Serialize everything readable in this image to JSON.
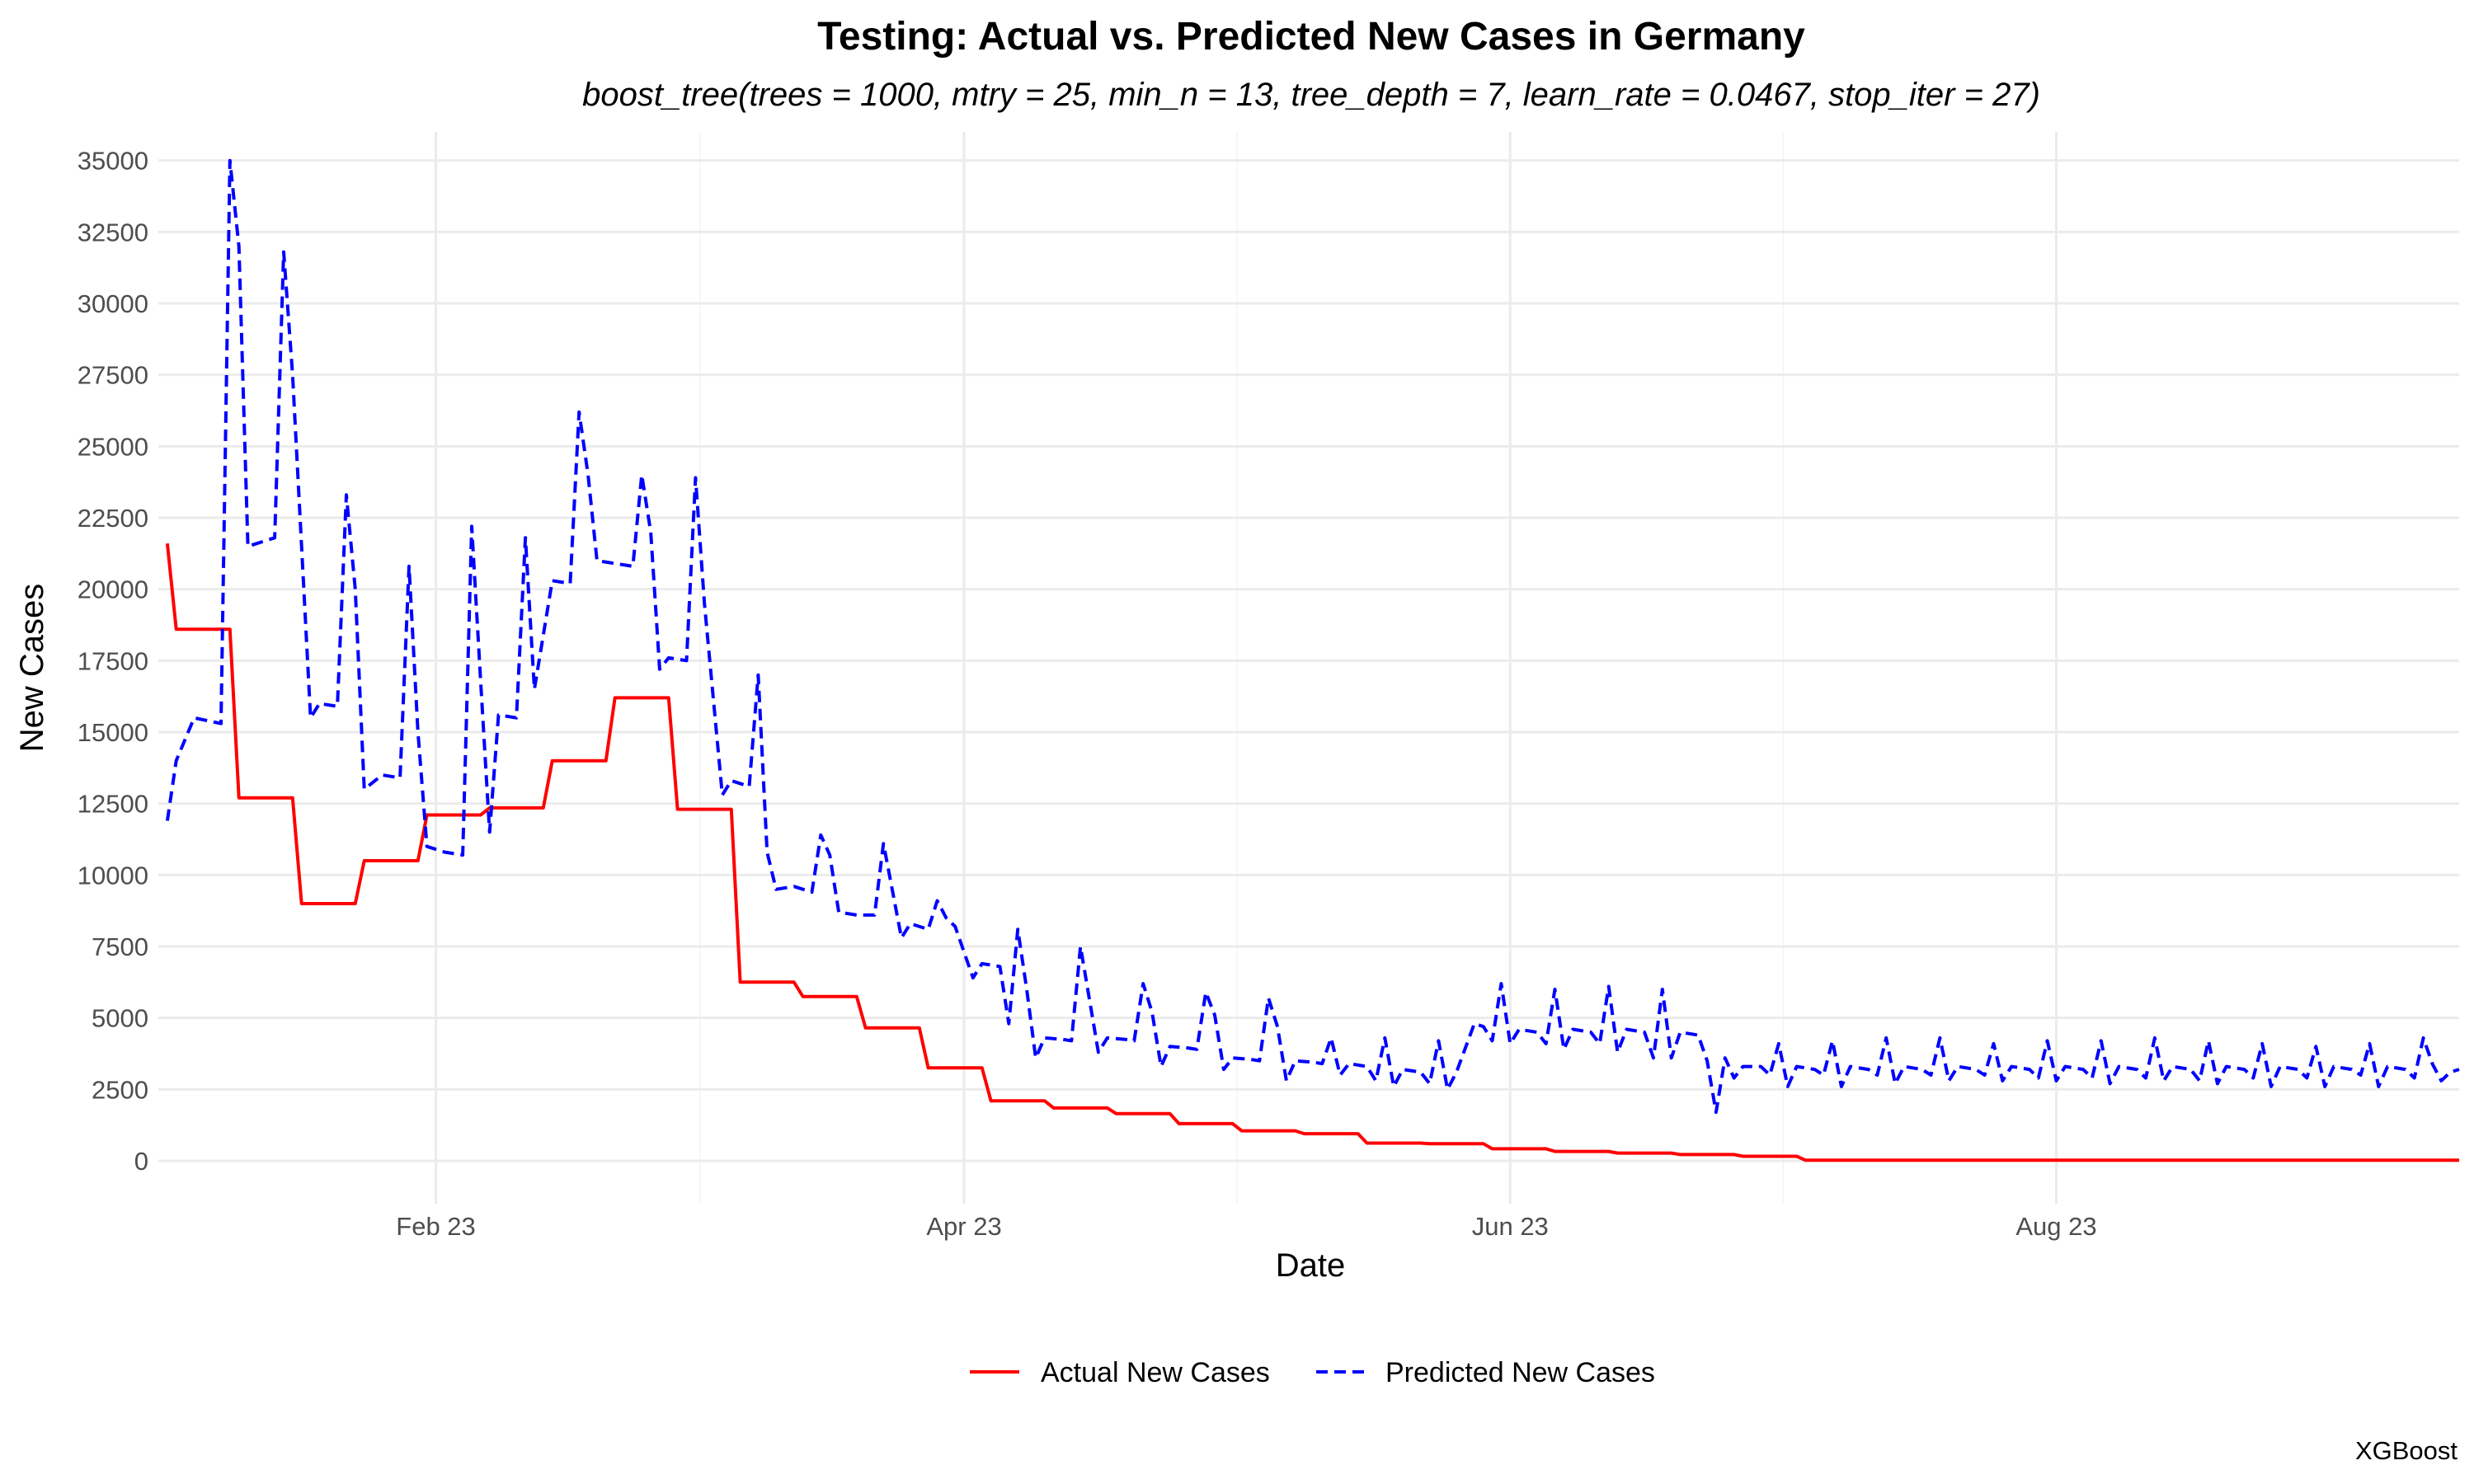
{
  "chart_data": {
    "type": "line",
    "title": "Testing: Actual vs. Predicted New Cases in Germany",
    "subtitle": "boost_tree(trees = 1000, mtry = 25, min_n = 13, tree_depth = 7, learn_rate = 0.0467, stop_iter = 27)",
    "caption": "XGBoost",
    "xlabel": "Date",
    "ylabel": "New Cases",
    "xlim": [
      "2023-01-13",
      "2023-09-27"
    ],
    "ylim": [
      -1500,
      36000
    ],
    "x_ticks": [
      {
        "date": "2023-02-01",
        "label": "Feb 23"
      },
      {
        "date": "2023-04-01",
        "label": "Apr 23"
      },
      {
        "date": "2023-06-01",
        "label": "Jun 23"
      },
      {
        "date": "2023-08-01",
        "label": "Aug 23"
      }
    ],
    "y_ticks": [
      0,
      2500,
      5000,
      7500,
      10000,
      12500,
      15000,
      17500,
      20000,
      22500,
      25000,
      27500,
      30000,
      32500,
      35000
    ],
    "y_tick_labels": [
      "0",
      "2500",
      "5000",
      "7500",
      "10000",
      "12500",
      "15000",
      "17500",
      "20000",
      "22500",
      "25000",
      "27500",
      "30000",
      "32500",
      "35000"
    ],
    "grid": true,
    "legend": {
      "position": "bottom",
      "entries": [
        "Actual New Cases",
        "Predicted New Cases"
      ]
    },
    "series": [
      {
        "name": "Actual New Cases",
        "color": "#ff0000",
        "dash": "solid",
        "points": [
          [
            "2023-01-02",
            21600
          ],
          [
            "2023-01-03",
            18600
          ],
          [
            "2023-01-09",
            18600
          ],
          [
            "2023-01-10",
            12700
          ],
          [
            "2023-01-16",
            12700
          ],
          [
            "2023-01-17",
            9000
          ],
          [
            "2023-01-23",
            9000
          ],
          [
            "2023-01-24",
            10500
          ],
          [
            "2023-01-30",
            10500
          ],
          [
            "2023-01-31",
            12100
          ],
          [
            "2023-02-06",
            12100
          ],
          [
            "2023-02-07",
            12350
          ],
          [
            "2023-02-13",
            12350
          ],
          [
            "2023-02-14",
            14000
          ],
          [
            "2023-02-20",
            14000
          ],
          [
            "2023-02-21",
            16200
          ],
          [
            "2023-02-27",
            16200
          ],
          [
            "2023-02-28",
            12300
          ],
          [
            "2023-03-06",
            12300
          ],
          [
            "2023-03-07",
            6250
          ],
          [
            "2023-03-13",
            6250
          ],
          [
            "2023-03-14",
            5750
          ],
          [
            "2023-03-20",
            5750
          ],
          [
            "2023-03-21",
            4650
          ],
          [
            "2023-03-27",
            4650
          ],
          [
            "2023-03-28",
            3250
          ],
          [
            "2023-04-03",
            3250
          ],
          [
            "2023-04-04",
            2100
          ],
          [
            "2023-04-10",
            2100
          ],
          [
            "2023-04-11",
            1850
          ],
          [
            "2023-04-17",
            1850
          ],
          [
            "2023-04-18",
            1650
          ],
          [
            "2023-04-24",
            1650
          ],
          [
            "2023-04-25",
            1300
          ],
          [
            "2023-05-01",
            1300
          ],
          [
            "2023-05-02",
            1050
          ],
          [
            "2023-05-08",
            1050
          ],
          [
            "2023-05-09",
            950
          ],
          [
            "2023-05-15",
            950
          ],
          [
            "2023-05-16",
            620
          ],
          [
            "2023-05-22",
            620
          ],
          [
            "2023-05-23",
            600
          ],
          [
            "2023-05-29",
            600
          ],
          [
            "2023-05-30",
            420
          ],
          [
            "2023-06-05",
            420
          ],
          [
            "2023-06-06",
            330
          ],
          [
            "2023-06-12",
            330
          ],
          [
            "2023-06-13",
            270
          ],
          [
            "2023-06-19",
            270
          ],
          [
            "2023-06-20",
            220
          ],
          [
            "2023-06-26",
            220
          ],
          [
            "2023-06-27",
            160
          ],
          [
            "2023-07-03",
            160
          ],
          [
            "2023-07-04",
            20
          ],
          [
            "2023-09-15",
            20
          ]
        ]
      },
      {
        "name": "Predicted New Cases",
        "color": "#0000ff",
        "dash": "dashed",
        "points": [
          [
            "2023-01-02",
            11900
          ],
          [
            "2023-01-03",
            14000
          ],
          [
            "2023-01-05",
            15500
          ],
          [
            "2023-01-08",
            15300
          ],
          [
            "2023-01-09",
            35000
          ],
          [
            "2023-01-10",
            32000
          ],
          [
            "2023-01-11",
            21500
          ],
          [
            "2023-01-14",
            21800
          ],
          [
            "2023-01-15",
            31800
          ],
          [
            "2023-01-16",
            27500
          ],
          [
            "2023-01-17",
            21500
          ],
          [
            "2023-01-18",
            15500
          ],
          [
            "2023-01-19",
            16000
          ],
          [
            "2023-01-21",
            15900
          ],
          [
            "2023-01-22",
            23300
          ],
          [
            "2023-01-23",
            20000
          ],
          [
            "2023-01-24",
            13000
          ],
          [
            "2023-01-26",
            13500
          ],
          [
            "2023-01-28",
            13400
          ],
          [
            "2023-01-29",
            20800
          ],
          [
            "2023-01-30",
            15000
          ],
          [
            "2023-01-31",
            11000
          ],
          [
            "2023-02-02",
            10800
          ],
          [
            "2023-02-04",
            10700
          ],
          [
            "2023-02-05",
            22200
          ],
          [
            "2023-02-06",
            16800
          ],
          [
            "2023-02-07",
            11500
          ],
          [
            "2023-02-08",
            15600
          ],
          [
            "2023-02-10",
            15500
          ],
          [
            "2023-02-11",
            21800
          ],
          [
            "2023-02-12",
            16500
          ],
          [
            "2023-02-14",
            20300
          ],
          [
            "2023-02-16",
            20200
          ],
          [
            "2023-02-17",
            26200
          ],
          [
            "2023-02-18",
            24000
          ],
          [
            "2023-02-19",
            21000
          ],
          [
            "2023-02-23",
            20800
          ],
          [
            "2023-02-24",
            24000
          ],
          [
            "2023-02-25",
            22000
          ],
          [
            "2023-02-26",
            17200
          ],
          [
            "2023-02-27",
            17600
          ],
          [
            "2023-03-01",
            17500
          ],
          [
            "2023-03-02",
            23900
          ],
          [
            "2023-03-03",
            19500
          ],
          [
            "2023-03-05",
            12800
          ],
          [
            "2023-03-06",
            13300
          ],
          [
            "2023-03-08",
            13100
          ],
          [
            "2023-03-09",
            17000
          ],
          [
            "2023-03-10",
            10800
          ],
          [
            "2023-03-11",
            9500
          ],
          [
            "2023-03-13",
            9600
          ],
          [
            "2023-03-15",
            9400
          ],
          [
            "2023-03-16",
            11400
          ],
          [
            "2023-03-17",
            10700
          ],
          [
            "2023-03-18",
            8700
          ],
          [
            "2023-03-20",
            8600
          ],
          [
            "2023-03-22",
            8600
          ],
          [
            "2023-03-23",
            11100
          ],
          [
            "2023-03-25",
            7800
          ],
          [
            "2023-03-26",
            8300
          ],
          [
            "2023-03-28",
            8100
          ],
          [
            "2023-03-29",
            9100
          ],
          [
            "2023-03-30",
            8500
          ],
          [
            "2023-03-31",
            8200
          ],
          [
            "2023-04-02",
            6400
          ],
          [
            "2023-04-03",
            6900
          ],
          [
            "2023-04-05",
            6800
          ],
          [
            "2023-04-06",
            4800
          ],
          [
            "2023-04-07",
            8100
          ],
          [
            "2023-04-08",
            6000
          ],
          [
            "2023-04-09",
            3600
          ],
          [
            "2023-04-10",
            4300
          ],
          [
            "2023-04-12",
            4250
          ],
          [
            "2023-04-13",
            4200
          ],
          [
            "2023-04-14",
            7500
          ],
          [
            "2023-04-16",
            3800
          ],
          [
            "2023-04-17",
            4300
          ],
          [
            "2023-04-19",
            4250
          ],
          [
            "2023-04-20",
            4200
          ],
          [
            "2023-04-21",
            6200
          ],
          [
            "2023-04-22",
            5200
          ],
          [
            "2023-04-23",
            3300
          ],
          [
            "2023-04-24",
            4000
          ],
          [
            "2023-04-26",
            3950
          ],
          [
            "2023-04-27",
            3900
          ],
          [
            "2023-04-28",
            5900
          ],
          [
            "2023-04-29",
            5100
          ],
          [
            "2023-04-30",
            3200
          ],
          [
            "2023-05-01",
            3600
          ],
          [
            "2023-05-03",
            3550
          ],
          [
            "2023-05-04",
            3500
          ],
          [
            "2023-05-05",
            5700
          ],
          [
            "2023-05-06",
            4700
          ],
          [
            "2023-05-07",
            2800
          ],
          [
            "2023-05-08",
            3500
          ],
          [
            "2023-05-10",
            3450
          ],
          [
            "2023-05-11",
            3400
          ],
          [
            "2023-05-12",
            4300
          ],
          [
            "2023-05-13",
            3000
          ],
          [
            "2023-05-14",
            3400
          ],
          [
            "2023-05-16",
            3300
          ],
          [
            "2023-05-17",
            2800
          ],
          [
            "2023-05-18",
            4300
          ],
          [
            "2023-05-19",
            2600
          ],
          [
            "2023-05-20",
            3200
          ],
          [
            "2023-05-22",
            3100
          ],
          [
            "2023-05-23",
            2700
          ],
          [
            "2023-05-24",
            4200
          ],
          [
            "2023-05-25",
            2500
          ],
          [
            "2023-05-26",
            3100
          ],
          [
            "2023-05-28",
            4800
          ],
          [
            "2023-05-29",
            4700
          ],
          [
            "2023-05-30",
            4200
          ],
          [
            "2023-05-31",
            6200
          ],
          [
            "2023-06-01",
            4100
          ],
          [
            "2023-06-02",
            4600
          ],
          [
            "2023-06-04",
            4500
          ],
          [
            "2023-06-05",
            4100
          ],
          [
            "2023-06-06",
            6000
          ],
          [
            "2023-06-07",
            3900
          ],
          [
            "2023-06-08",
            4600
          ],
          [
            "2023-06-10",
            4500
          ],
          [
            "2023-06-11",
            4100
          ],
          [
            "2023-06-12",
            6100
          ],
          [
            "2023-06-13",
            3800
          ],
          [
            "2023-06-14",
            4600
          ],
          [
            "2023-06-16",
            4500
          ],
          [
            "2023-06-17",
            3600
          ],
          [
            "2023-06-18",
            6000
          ],
          [
            "2023-06-19",
            3600
          ],
          [
            "2023-06-20",
            4500
          ],
          [
            "2023-06-22",
            4400
          ],
          [
            "2023-06-23",
            3500
          ],
          [
            "2023-06-24",
            1700
          ],
          [
            "2023-06-25",
            3600
          ],
          [
            "2023-06-26",
            2900
          ],
          [
            "2023-06-27",
            3300
          ],
          [
            "2023-06-29",
            3300
          ],
          [
            "2023-06-30",
            3000
          ],
          [
            "2023-07-01",
            4100
          ],
          [
            "2023-07-02",
            2600
          ],
          [
            "2023-07-03",
            3300
          ],
          [
            "2023-07-05",
            3200
          ],
          [
            "2023-07-06",
            3000
          ],
          [
            "2023-07-07",
            4200
          ],
          [
            "2023-07-08",
            2600
          ],
          [
            "2023-07-09",
            3300
          ],
          [
            "2023-07-11",
            3200
          ],
          [
            "2023-07-12",
            3000
          ],
          [
            "2023-07-13",
            4300
          ],
          [
            "2023-07-14",
            2700
          ],
          [
            "2023-07-15",
            3300
          ],
          [
            "2023-07-17",
            3200
          ],
          [
            "2023-07-18",
            3000
          ],
          [
            "2023-07-19",
            4300
          ],
          [
            "2023-07-20",
            2800
          ],
          [
            "2023-07-21",
            3300
          ],
          [
            "2023-07-23",
            3200
          ],
          [
            "2023-07-24",
            3000
          ],
          [
            "2023-07-25",
            4100
          ],
          [
            "2023-07-26",
            2800
          ],
          [
            "2023-07-27",
            3300
          ],
          [
            "2023-07-29",
            3200
          ],
          [
            "2023-07-30",
            2900
          ],
          [
            "2023-07-31",
            4200
          ],
          [
            "2023-08-01",
            2800
          ],
          [
            "2023-08-02",
            3300
          ],
          [
            "2023-08-04",
            3200
          ],
          [
            "2023-08-05",
            2900
          ],
          [
            "2023-08-06",
            4200
          ],
          [
            "2023-08-07",
            2700
          ],
          [
            "2023-08-08",
            3300
          ],
          [
            "2023-08-10",
            3200
          ],
          [
            "2023-08-11",
            2900
          ],
          [
            "2023-08-12",
            4300
          ],
          [
            "2023-08-13",
            2800
          ],
          [
            "2023-08-14",
            3300
          ],
          [
            "2023-08-16",
            3200
          ],
          [
            "2023-08-17",
            2800
          ],
          [
            "2023-08-18",
            4200
          ],
          [
            "2023-08-19",
            2700
          ],
          [
            "2023-08-20",
            3300
          ],
          [
            "2023-08-22",
            3200
          ],
          [
            "2023-08-23",
            2900
          ],
          [
            "2023-08-24",
            4100
          ],
          [
            "2023-08-25",
            2600
          ],
          [
            "2023-08-26",
            3300
          ],
          [
            "2023-08-28",
            3200
          ],
          [
            "2023-08-29",
            2900
          ],
          [
            "2023-08-30",
            4000
          ],
          [
            "2023-08-31",
            2600
          ],
          [
            "2023-09-01",
            3300
          ],
          [
            "2023-09-03",
            3200
          ],
          [
            "2023-09-04",
            3000
          ],
          [
            "2023-09-05",
            4100
          ],
          [
            "2023-09-06",
            2600
          ],
          [
            "2023-09-07",
            3300
          ],
          [
            "2023-09-09",
            3200
          ],
          [
            "2023-09-10",
            2900
          ],
          [
            "2023-09-11",
            4300
          ],
          [
            "2023-09-12",
            3400
          ],
          [
            "2023-09-13",
            2800
          ],
          [
            "2023-09-14",
            3100
          ],
          [
            "2023-09-15",
            3200
          ]
        ]
      }
    ]
  }
}
